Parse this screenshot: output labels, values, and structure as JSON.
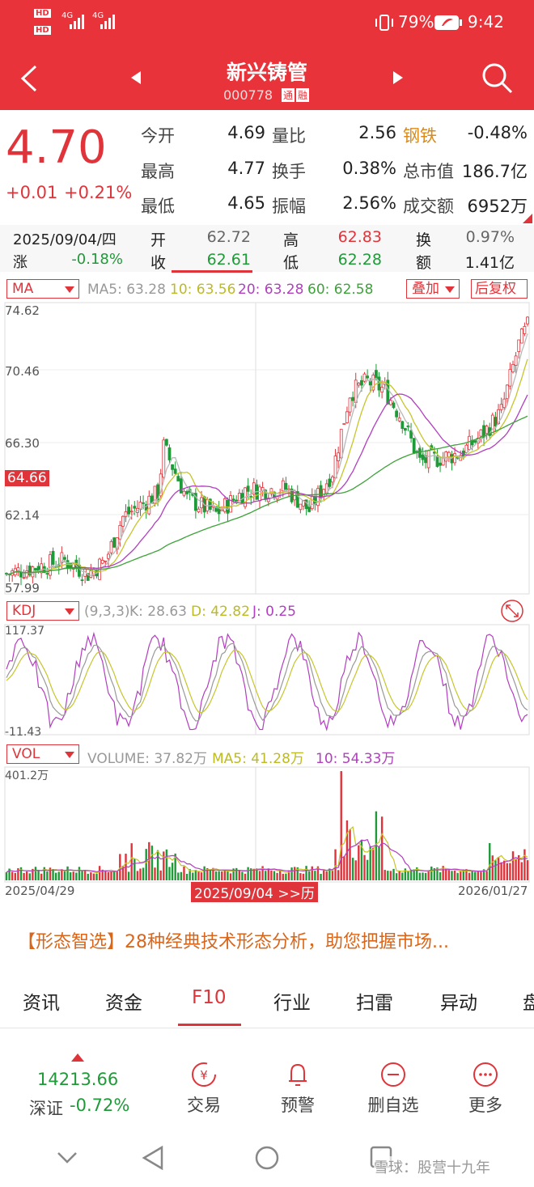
{
  "status_bar": {
    "hd1": "HD",
    "hd2": "HD",
    "net1": "4G",
    "net2": "4G",
    "battery": "79%",
    "time": "9:42"
  },
  "header": {
    "title": "新兴铸管",
    "code": "000778",
    "tag1": "通",
    "tag2": "融"
  },
  "quote": {
    "price": "4.70",
    "change": "+0.01",
    "change_pct": "+0.21%",
    "rows": [
      {
        "l1": "今开",
        "v1": "4.69",
        "l2": "量比",
        "v2": "2.56",
        "l3": "钢铁",
        "v3": "-0.48%"
      },
      {
        "l1": "最高",
        "v1": "4.77",
        "l2": "换手",
        "v2": "0.38%",
        "l3": "总市值",
        "v3": "186.7亿"
      },
      {
        "l1": "最低",
        "v1": "4.65",
        "l2": "振幅",
        "v2": "2.56%",
        "l3": "成交额",
        "v3": "6952万"
      }
    ]
  },
  "detail": {
    "date": "2025/09/04/四",
    "zhang_label": "涨",
    "zhang_val": "-0.18%",
    "kai_label": "开",
    "kai_val": "62.72",
    "shou_label": "收",
    "shou_val": "62.61",
    "gao_label": "高",
    "gao_val": "62.83",
    "di_label": "低",
    "di_val": "62.28",
    "huan_label": "换",
    "huan_val": "0.97%",
    "e_label": "额",
    "e_val": "1.41亿"
  },
  "ma_panel": {
    "selector": "MA",
    "ma5": "MA5: 63.28",
    "ma10": "10: 63.56",
    "ma20": "20: 63.28",
    "ma60": "60: 62.58",
    "overlay": "叠加",
    "adjust": "后复权",
    "y_labels": [
      "74.62",
      "70.46",
      "66.30",
      "62.14",
      "57.99"
    ],
    "current": "64.66"
  },
  "kdj_panel": {
    "selector": "KDJ",
    "params": "(9,3,3)",
    "k": "K: 28.63",
    "d": "D: 42.82",
    "j": "J: 0.25",
    "y_top": "117.37",
    "y_bottom": "-11.43"
  },
  "vol_panel": {
    "selector": "VOL",
    "volume": "VOLUME: 37.82万",
    "ma5": "MA5: 41.28万",
    "ma10": "10: 54.33万",
    "y_top": "401.2万",
    "date_start": "2025/04/29",
    "date_mid": "2025/09/04 >>历",
    "date_end": "2026/01/27"
  },
  "promo": {
    "text": "【形态智选】28种经典技术形态分析，助您把握市场..."
  },
  "tabs": [
    "资讯",
    "资金",
    "F10",
    "行业",
    "扫雷",
    "异动",
    "盘"
  ],
  "bottom": {
    "index_val": "14213.66",
    "index_name": "深证",
    "index_change": "-0.72%",
    "trade": "交易",
    "alert": "预警",
    "remove": "删自选",
    "more": "更多"
  },
  "watermark": "雪球：股营十九年",
  "colors": {
    "up": "#e0343b",
    "down": "#1f9a38",
    "ma5": "#b8b8b8",
    "ma10": "#c7c52a",
    "ma20": "#b23ec0",
    "ma60": "#3ea33a",
    "header": "#e8333a"
  }
}
